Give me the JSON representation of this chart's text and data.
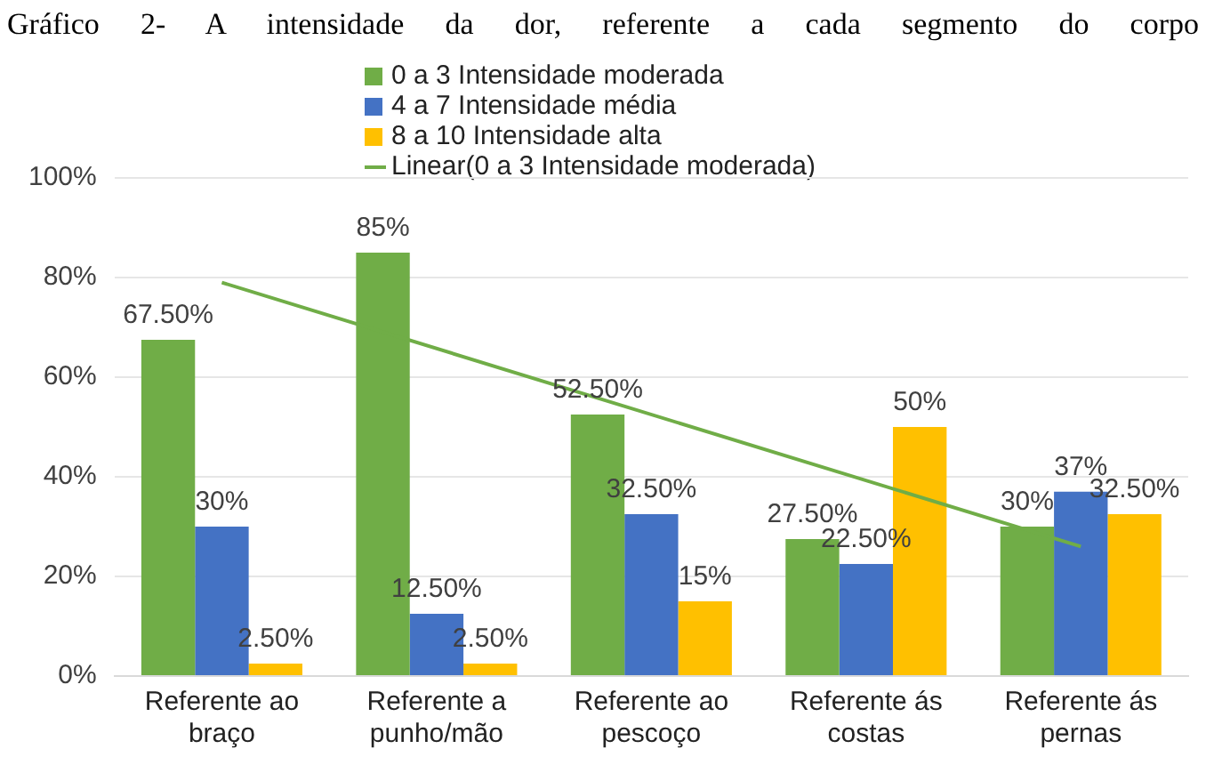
{
  "chart_data": {
    "type": "bar",
    "title": "Gráfico 2- A intensidade da dor, referente a cada segmento do corpo",
    "categories": [
      "Referente ao braço",
      "Referente a punho/mão",
      "Referente ao pescoço",
      "Referente ás costas",
      "Referente ás pernas"
    ],
    "series": [
      {
        "name": "0 a 3 Intensidade moderada",
        "color": "#70ad47",
        "values": [
          67.5,
          85,
          52.5,
          27.5,
          30
        ],
        "value_labels": [
          "67.50%",
          "85%",
          "52.50%",
          "27.50%",
          "30%"
        ]
      },
      {
        "name": "4 a 7 Intensidade média",
        "color": "#4472c4",
        "values": [
          30,
          12.5,
          32.5,
          22.5,
          37
        ],
        "value_labels": [
          "30%",
          "12.50%",
          "32.50%",
          "22.50%",
          "37%"
        ]
      },
      {
        "name": "8 a 10 Intensidade alta",
        "color": "#ffc000",
        "values": [
          2.5,
          2.5,
          15,
          50,
          32.5
        ],
        "value_labels": [
          "2.50%",
          "2.50%",
          "15%",
          "50%",
          "32.50%"
        ]
      },
      {
        "name": "Linear(0 a 3 Intensidade moderada)",
        "type": "line",
        "color": "#70ad47",
        "x": [
          "Referente ao braço",
          "Referente ás pernas"
        ],
        "values": [
          79,
          26
        ]
      }
    ],
    "ylim": [
      0,
      100
    ],
    "yticks": [
      {
        "value": 0,
        "label": "0%"
      },
      {
        "value": 20,
        "label": "20%"
      },
      {
        "value": 40,
        "label": "40%"
      },
      {
        "value": 60,
        "label": "60%"
      },
      {
        "value": 80,
        "label": "80%"
      },
      {
        "value": 100,
        "label": "100%"
      }
    ],
    "grid": "y",
    "legend": "top"
  }
}
